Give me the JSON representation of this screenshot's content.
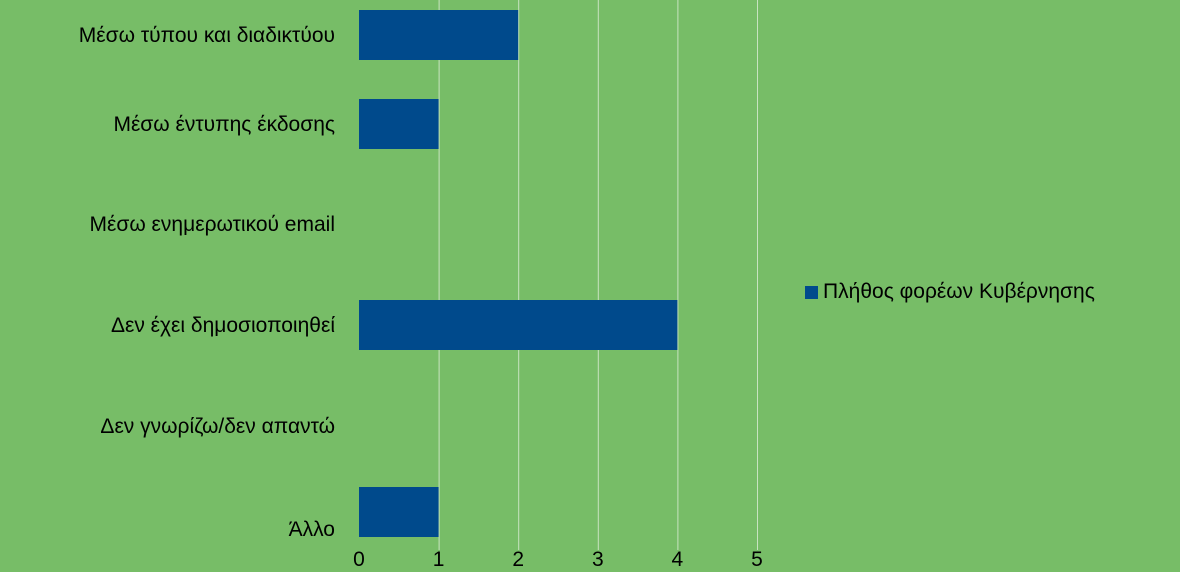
{
  "chart_data": {
    "type": "bar",
    "orientation": "horizontal",
    "categories": [
      "Μέσω τύπου και διαδικτύου",
      "Μέσω έντυπης έκδοσης",
      "Μέσω ενημερωτικού email",
      "Δεν έχει δημοσιοποιηθεί",
      "Δεν γνωρίζω/δεν απαντώ",
      "Άλλο"
    ],
    "series": [
      {
        "name": "Πλήθος φορέων Κυβέρνησης",
        "values": [
          2,
          1,
          0,
          4,
          0,
          1
        ],
        "color": "#004a8c"
      }
    ],
    "xlim": [
      0,
      5
    ],
    "x_ticks": [
      "0",
      "1",
      "2",
      "3",
      "4",
      "5"
    ],
    "grid": "vertical",
    "legend_position": "right",
    "background_color": "#77bd67",
    "grid_color": "#c8e3c1"
  }
}
